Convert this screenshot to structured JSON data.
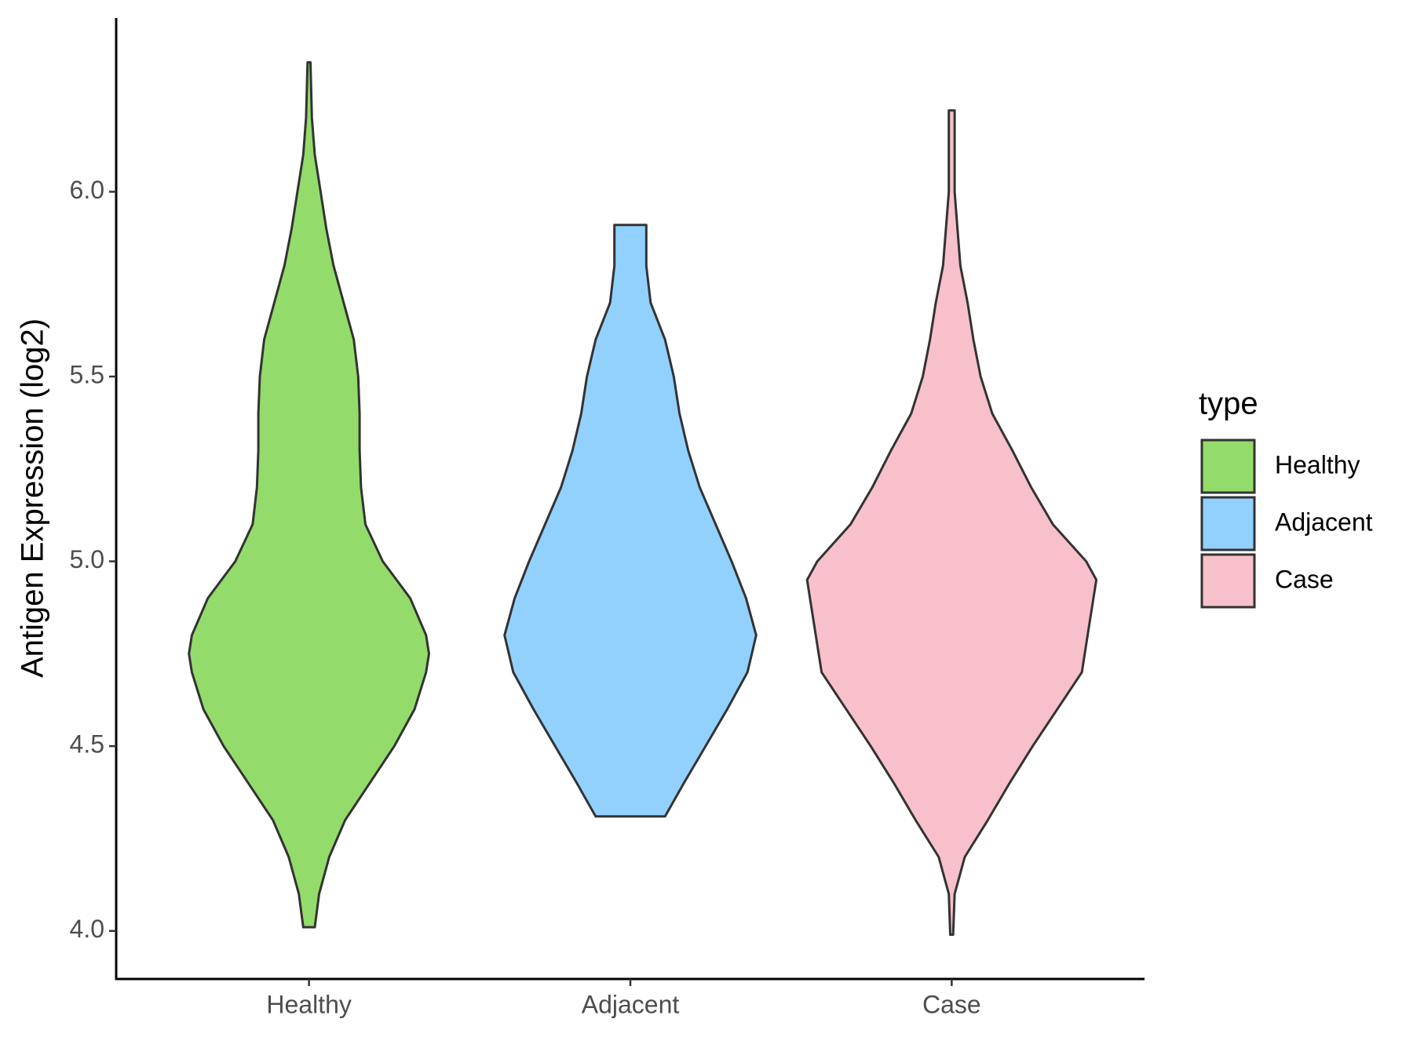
{
  "chart_data": {
    "type": "violin",
    "y_label": "Antigen Expression (log2)",
    "legend_title": "type",
    "categories": [
      "Healthy",
      "Adjacent",
      "Case"
    ],
    "series": [
      {
        "name": "Healthy",
        "color": "#93dc6b",
        "y": [
          4.01,
          4.1,
          4.2,
          4.3,
          4.4,
          4.5,
          4.6,
          4.7,
          4.75,
          4.8,
          4.9,
          5.0,
          5.1,
          5.2,
          5.3,
          5.4,
          5.5,
          5.6,
          5.7,
          5.8,
          5.9,
          6.0,
          6.1,
          6.2,
          6.35
        ],
        "density": [
          0.04,
          0.07,
          0.14,
          0.25,
          0.42,
          0.59,
          0.73,
          0.81,
          0.83,
          0.81,
          0.7,
          0.51,
          0.39,
          0.36,
          0.35,
          0.35,
          0.34,
          0.31,
          0.24,
          0.17,
          0.12,
          0.08,
          0.04,
          0.02,
          0.01
        ]
      },
      {
        "name": "Adjacent",
        "color": "#92d1fe",
        "y": [
          4.31,
          4.4,
          4.5,
          4.6,
          4.7,
          4.8,
          4.9,
          5.0,
          5.1,
          5.2,
          5.3,
          5.4,
          5.5,
          5.6,
          5.7,
          5.8,
          5.91
        ],
        "density": [
          0.24,
          0.37,
          0.52,
          0.67,
          0.81,
          0.87,
          0.8,
          0.7,
          0.59,
          0.48,
          0.4,
          0.34,
          0.3,
          0.24,
          0.14,
          0.11,
          0.11
        ]
      },
      {
        "name": "Case",
        "color": "#f7c0cb",
        "y": [
          3.99,
          4.1,
          4.2,
          4.3,
          4.4,
          4.5,
          4.6,
          4.7,
          4.8,
          4.9,
          4.95,
          5.0,
          5.1,
          5.2,
          5.3,
          5.4,
          5.5,
          5.6,
          5.7,
          5.8,
          5.9,
          6.0,
          6.1,
          6.22
        ],
        "density": [
          0.01,
          0.02,
          0.09,
          0.25,
          0.4,
          0.56,
          0.73,
          0.9,
          0.94,
          0.98,
          1.0,
          0.93,
          0.7,
          0.55,
          0.42,
          0.28,
          0.2,
          0.15,
          0.11,
          0.06,
          0.04,
          0.02,
          0.02,
          0.02
        ]
      }
    ],
    "ylim": [
      3.87,
      6.47
    ],
    "yticks": [
      {
        "value": 4,
        "label": "4.0"
      },
      4.5,
      {
        "value": 5,
        "label": "5.0"
      },
      5.5,
      {
        "value": 6,
        "label": "6.0"
      }
    ]
  }
}
